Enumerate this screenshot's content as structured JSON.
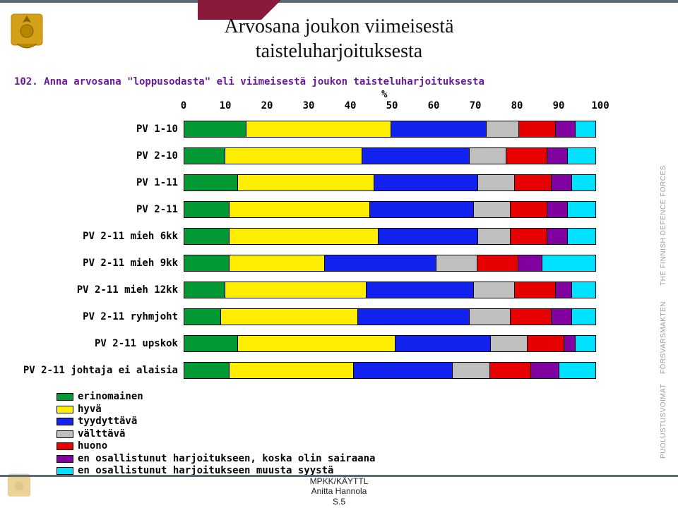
{
  "title_line1": "Arvosana joukon viimeisestä",
  "title_line2": "taisteluharjoituksesta",
  "question": "102. Anna arvosana \"loppusodasta\" eli viimeisestä joukon taisteluharjoituksesta",
  "percent_symbol": "%",
  "footer": {
    "l1": "MPKK/KÄYTTL",
    "l2": "Anitta Hannola",
    "l3": "S.5"
  },
  "side_labels": [
    "PUOLUSTUSVOIMAT",
    "FÖRSVARSMAKTEN",
    "THE FINNISH DEFENCE FORCES"
  ],
  "axis": {
    "min": 0,
    "max": 100,
    "ticks": [
      0,
      10,
      20,
      30,
      40,
      50,
      60,
      70,
      80,
      90,
      100
    ]
  },
  "colors": {
    "erinomainen": "#009933",
    "hyva": "#ffee00",
    "tyydyttava": "#1122ee",
    "valttava": "#bfbfbf",
    "huono": "#e60000",
    "sairas": "#8000a0",
    "muu": "#00e0ff",
    "question_text": "#6a1a9a",
    "top_accent": "#8a1a3c"
  },
  "category_keys": [
    "erinomainen",
    "hyva",
    "tyydyttava",
    "valttava",
    "huono",
    "sairas",
    "muu"
  ],
  "rows": [
    {
      "label": "PV 1-10",
      "values": [
        15,
        35,
        23,
        8,
        9,
        5,
        5
      ]
    },
    {
      "label": "PV 2-10",
      "values": [
        10,
        33,
        26,
        9,
        10,
        5,
        7
      ]
    },
    {
      "label": "PV 1-11",
      "values": [
        13,
        33,
        25,
        9,
        9,
        5,
        6
      ]
    },
    {
      "label": "PV 2-11",
      "values": [
        11,
        34,
        25,
        9,
        9,
        5,
        7
      ]
    },
    {
      "label": "PV 2-11 mieh 6kk",
      "values": [
        11,
        36,
        24,
        8,
        9,
        5,
        7
      ]
    },
    {
      "label": "PV 2-11 mieh 9kk",
      "values": [
        11,
        23,
        27,
        10,
        10,
        6,
        13
      ]
    },
    {
      "label": "PV 2-11 mieh 12kk",
      "values": [
        10,
        34,
        26,
        10,
        10,
        4,
        6
      ]
    },
    {
      "label": "PV 2-11 ryhmjoht",
      "values": [
        9,
        33,
        27,
        10,
        10,
        5,
        6
      ]
    },
    {
      "label": "PV 2-11 upskok",
      "values": [
        13,
        38,
        23,
        9,
        9,
        3,
        5
      ]
    },
    {
      "label": "PV 2-11 johtaja ei alaisia",
      "values": [
        11,
        30,
        24,
        9,
        10,
        7,
        9
      ]
    }
  ],
  "legend": [
    {
      "key": "erinomainen",
      "label": "erinomainen"
    },
    {
      "key": "hyva",
      "label": "hyvä"
    },
    {
      "key": "tyydyttava",
      "label": "tyydyttävä"
    },
    {
      "key": "valttava",
      "label": "välttävä"
    },
    {
      "key": "huono",
      "label": "huono"
    },
    {
      "key": "sairas",
      "label": "en osallistunut harjoitukseen, koska olin sairaana"
    },
    {
      "key": "muu",
      "label": "en osallistunut harjoitukseen muusta syystä"
    }
  ]
}
